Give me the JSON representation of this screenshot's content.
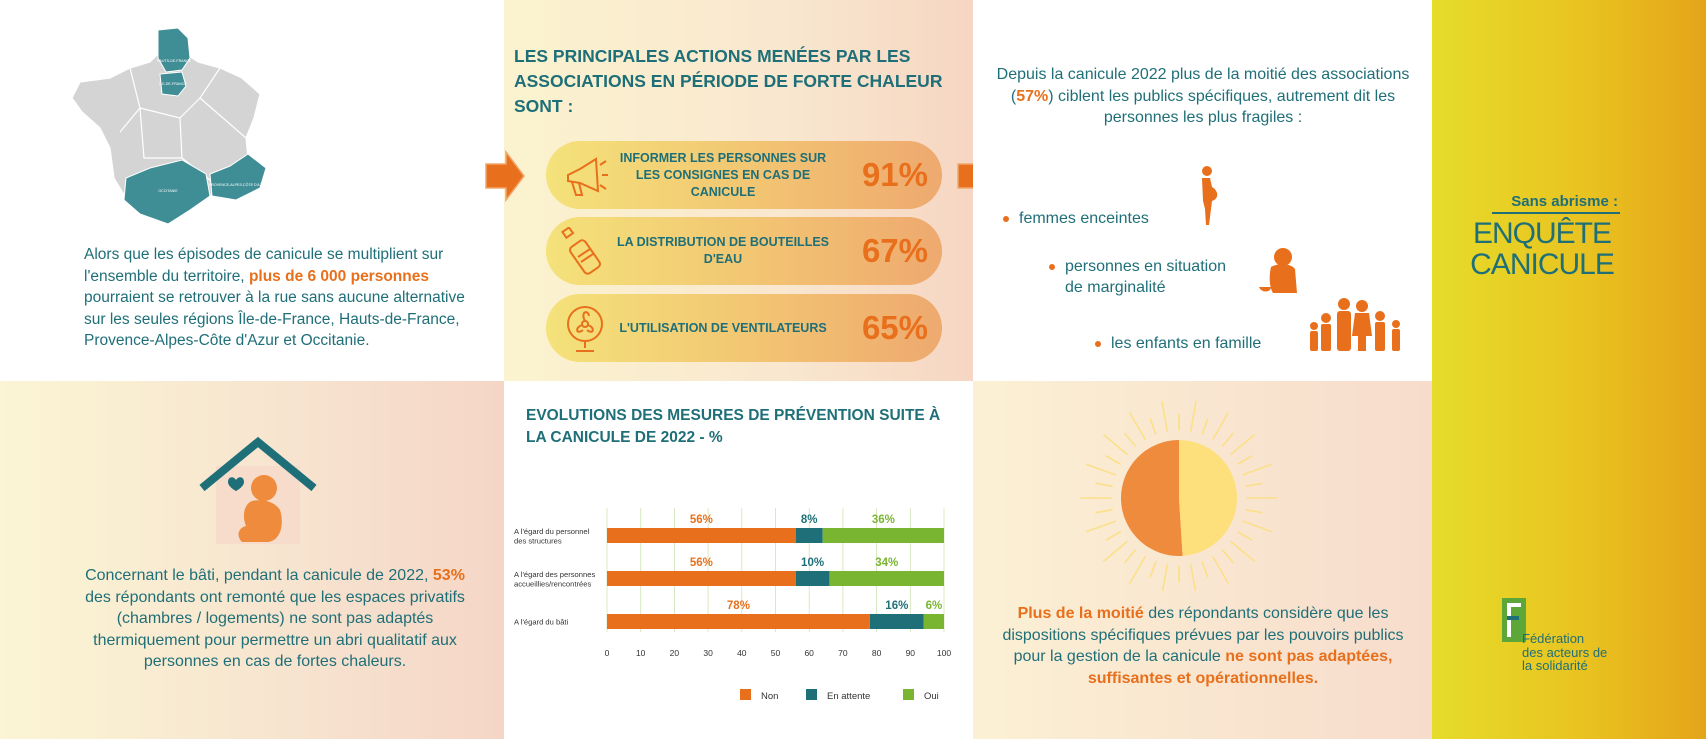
{
  "map": {
    "region_labels": [
      "HAUTS-DE-FRANCE",
      "ÎLE-DE-FRANCE",
      "OCCITANIE",
      "PROVENCE-ALPES-CÔTE D'AZUR"
    ],
    "text_a": "Alors que les épisodes de canicule se multiplient sur l'ensemble du territoire, ",
    "text_hl": "plus de 6 000 personnes",
    "text_b": " pourraient se retrouver à la rue sans aucune alternative sur les seules régions Île-de-France, Hauts-de-France, Provence-Alpes-Côte d'Azur et Occitanie."
  },
  "actions": {
    "title": "LES PRINCIPALES ACTIONS MENÉES PAR LES ASSOCIATIONS EN PÉRIODE DE FORTE CHALEUR SONT :",
    "items": [
      {
        "label": "INFORMER LES PERSONNES SUR LES CONSIGNES EN CAS DE CANICULE",
        "pct": "91%",
        "icon": "megaphone-icon"
      },
      {
        "label": "LA DISTRIBUTION DE BOUTEILLES D'EAU",
        "pct": "67%",
        "icon": "water-bottle-icon"
      },
      {
        "label": "L'UTILISATION DE VENTILATEURS",
        "pct": "65%",
        "icon": "fan-icon"
      }
    ]
  },
  "target": {
    "intro_a": "Depuis la canicule 2022 plus de la moitié des associations (",
    "intro_hl": "57%",
    "intro_b": ") ciblent les publics spécifiques, autrement dit les personnes les plus fragiles :",
    "bullets": [
      {
        "text": "femmes enceintes",
        "icon": "pregnant-woman-icon"
      },
      {
        "text": "personnes en situation de marginalité",
        "icon": "homeless-person-icon"
      },
      {
        "text": "les enfants en famille",
        "icon": "family-icon"
      }
    ]
  },
  "house": {
    "text_a": "Concernant le bâti, pendant la canicule de 2022, ",
    "text_hl": "53%",
    "text_b": " des répondants ont remonté que les espaces privatifs (chambres / logements) ne sont pas adaptés thermiquement pour permettre un abri qualitatif aux personnes en cas de fortes chaleurs."
  },
  "chart_data": {
    "type": "bar",
    "orientation": "horizontal-stacked",
    "title": "EVOLUTIONS DES MESURES DE PRÉVENTION SUITE À LA CANICULE DE 2022 - %",
    "categories": [
      "A l'égard du personnel des structures",
      "A l'égard des personnes accueillies/rencontrées",
      "A l'égard du bâti"
    ],
    "category_lines": [
      [
        "A l'égard du personnel",
        "des structures"
      ],
      [
        "A l'égard des personnes",
        "accueillies/rencontrées"
      ],
      [
        "A l'égard du bâti"
      ]
    ],
    "series": [
      {
        "name": "Non",
        "values": [
          56,
          56,
          78
        ],
        "labels": [
          "56%",
          "56%",
          "78%"
        ],
        "color": "#e8701c"
      },
      {
        "name": "En attente",
        "values": [
          8,
          10,
          16
        ],
        "labels": [
          "8%",
          "10%",
          "16%"
        ],
        "color": "#1f6f78"
      },
      {
        "name": "Oui",
        "values": [
          36,
          34,
          6
        ],
        "labels": [
          "36%",
          "34%",
          "6%"
        ],
        "color": "#7ab531"
      }
    ],
    "xlim": [
      0,
      100
    ],
    "xticks": [
      "0",
      "10",
      "20",
      "30",
      "40",
      "50",
      "60",
      "70",
      "80",
      "90",
      "100"
    ],
    "legend_position": "bottom-right",
    "grid": true
  },
  "sun": {
    "pie_values": [
      51,
      49
    ],
    "pie_colors": [
      "#ee8b3c",
      "#fde07c"
    ],
    "text_hl1": "Plus de la moitié",
    "text_a": " des répondants considère que les dispositions spécifiques prévues par les pouvoirs publics  pour la gestion de la canicule ",
    "text_hl2": "ne sont pas adaptées, suffisantes et opérationnelles."
  },
  "side": {
    "kicker": "Sans abrisme :",
    "title": "ENQUÊTE CANICULE",
    "org_line1": "Fédération",
    "org_line2": "des acteurs de",
    "org_line3": "la solidarité"
  },
  "colors": {
    "teal": "#1f6f78",
    "orange": "#e8701c",
    "green": "#7ab531",
    "map_grey": "#d4d4d4",
    "map_teal": "#3f8e96"
  }
}
